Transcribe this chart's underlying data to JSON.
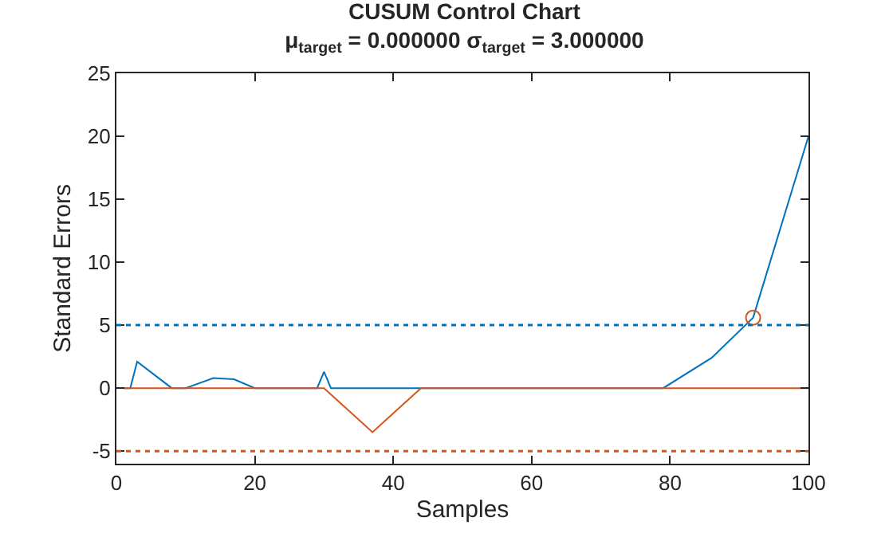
{
  "chart_data": {
    "type": "line",
    "title": "CUSUM Control Chart",
    "subtitle": "μ$_{target}$ = 0.000000 σ$_{target}$ = 3.000000",
    "xlabel": "Samples",
    "ylabel": "Standard Errors",
    "xlim": [
      0,
      100
    ],
    "xticks": [
      0,
      20,
      40,
      60,
      80,
      100
    ],
    "ylim": [
      -6,
      25
    ],
    "yticks": [
      -5,
      0,
      5,
      10,
      15,
      20,
      25
    ],
    "marker": "none",
    "line_style": "solid",
    "series": [
      {
        "color": "#0072bd",
        "x": [
          1,
          2,
          3,
          8,
          10,
          14,
          17,
          20,
          29,
          30,
          31,
          79,
          86,
          92,
          100
        ],
        "values": [
          0,
          0,
          2.1,
          0,
          0,
          0.8,
          0.7,
          0,
          0,
          1.3,
          0,
          0,
          2.4,
          5.6,
          20
        ]
      },
      {
        "color": "#d95319",
        "x": [
          1,
          30,
          37,
          44,
          100
        ],
        "values": [
          0,
          0,
          -3.5,
          0,
          0
        ]
      },
      {
        "type": "scatter",
        "marker": "circle",
        "color": "#d95319",
        "x": [
          92
        ],
        "values": [
          5.6
        ]
      }
    ],
    "ref_lines": [
      {
        "axis": "y",
        "value": 5,
        "label": null,
        "color": "#0072bd",
        "line_style": "dotted"
      },
      {
        "axis": "y",
        "value": -5,
        "label": null,
        "color": "#d95319",
        "line_style": "dotted"
      }
    ]
  }
}
